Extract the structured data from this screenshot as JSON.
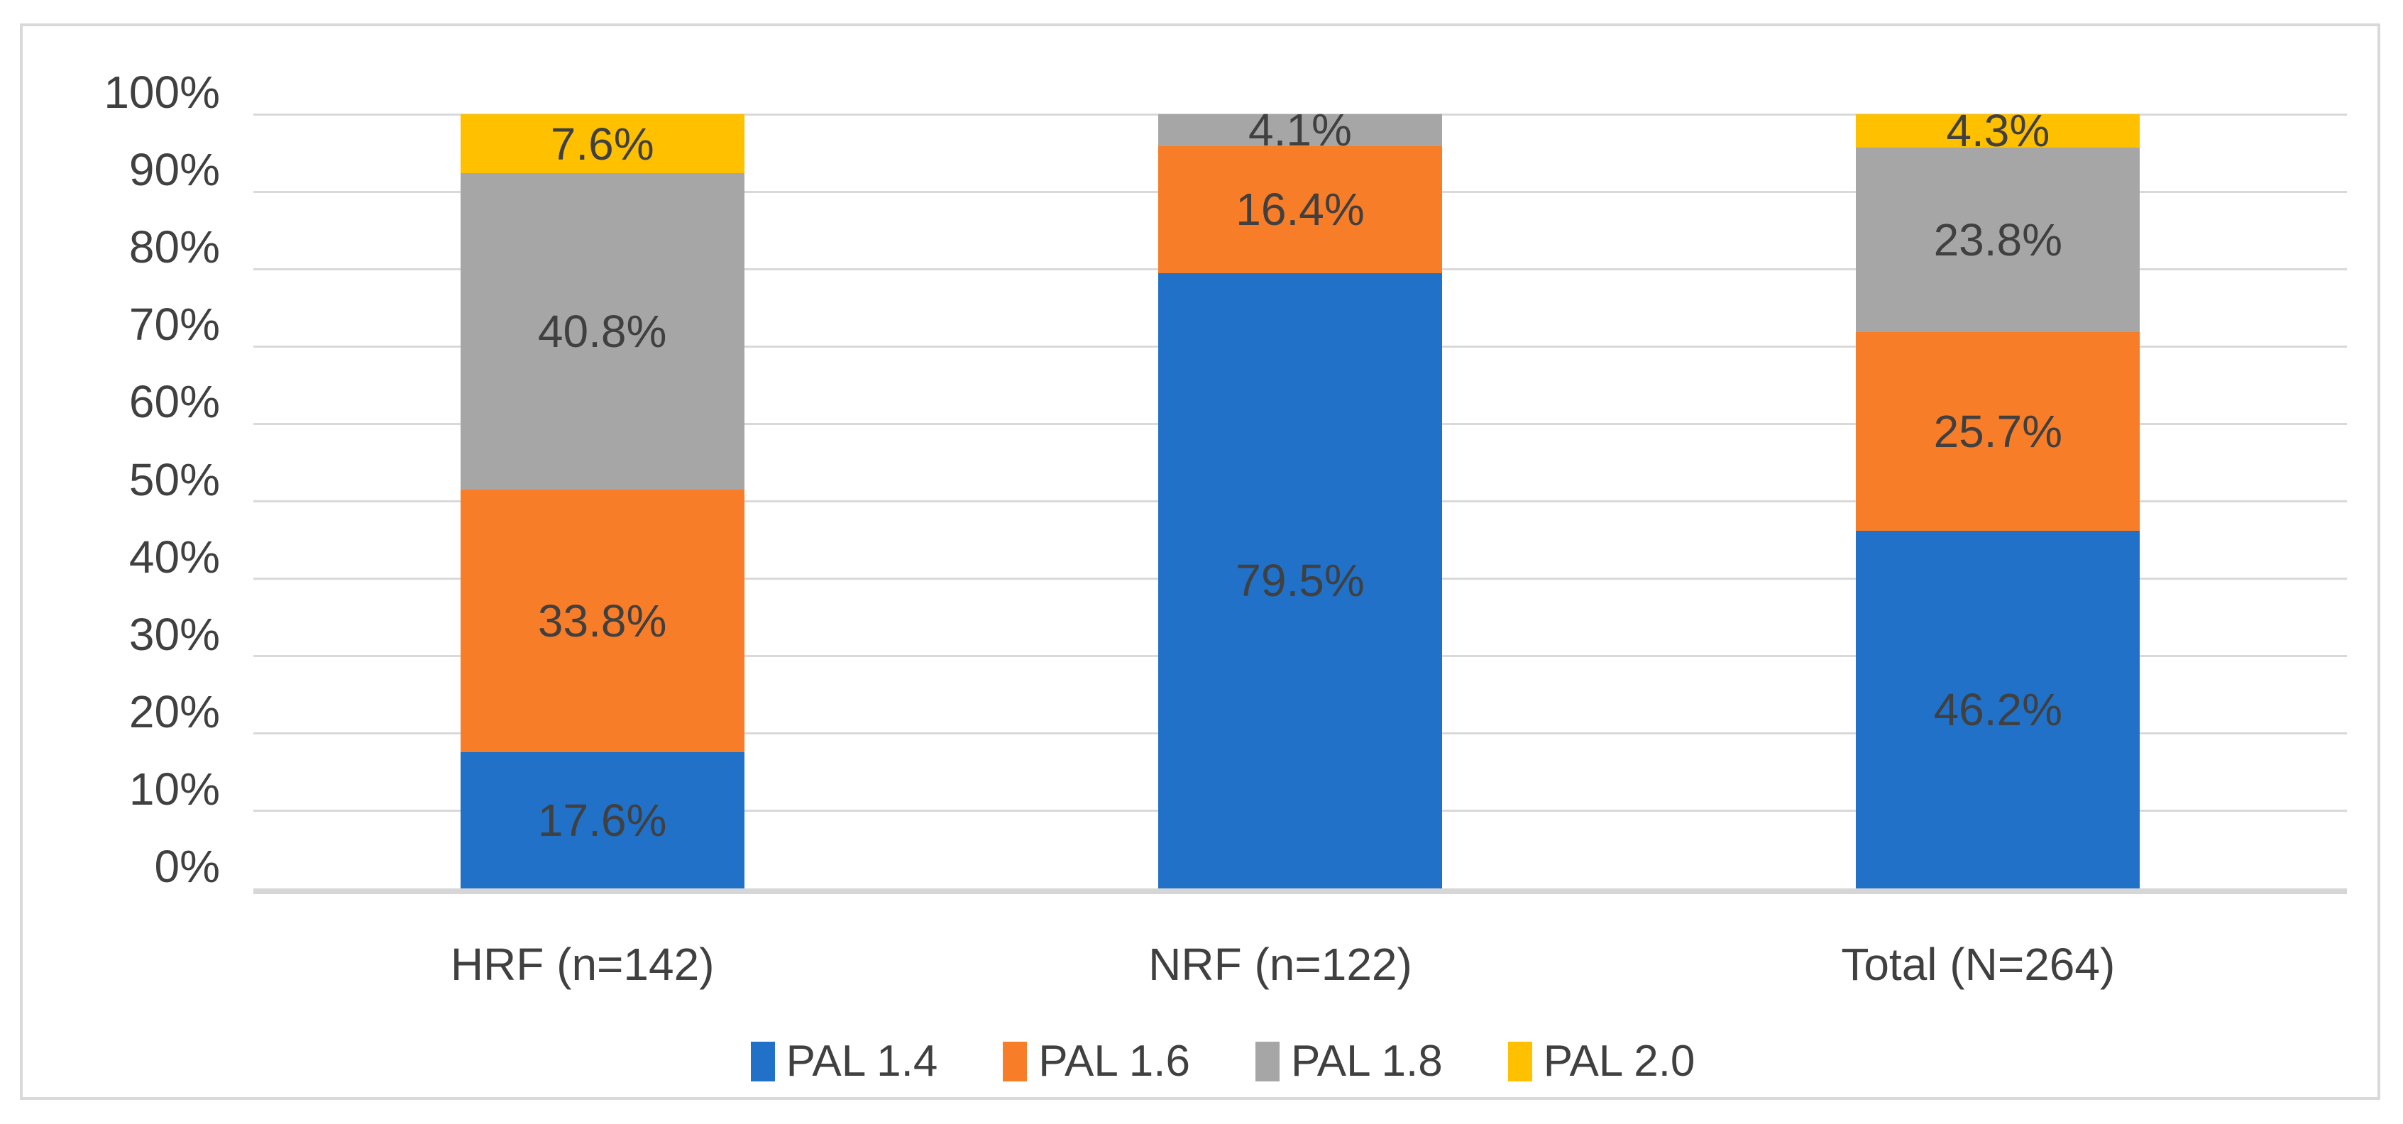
{
  "chart_data": {
    "type": "bar",
    "subtype": "100%-stacked-column",
    "title": "",
    "xlabel": "",
    "ylabel": "",
    "categories": [
      "HRF (n=142)",
      "NRF (n=122)",
      "Total (N=264)"
    ],
    "series": [
      {
        "name": "PAL 1.4",
        "color": "#2071c7",
        "values": [
          17.6,
          79.5,
          46.2
        ]
      },
      {
        "name": "PAL 1.6",
        "color": "#f87d28",
        "values": [
          33.8,
          16.4,
          25.7
        ]
      },
      {
        "name": "PAL 1.8",
        "color": "#a6a6a6",
        "values": [
          40.8,
          4.1,
          23.8
        ]
      },
      {
        "name": "PAL 2.0",
        "color": "#ffc000",
        "values": [
          7.6,
          0,
          4.3
        ]
      }
    ],
    "data_labels": [
      [
        "17.6%",
        "33.8%",
        "40.8%",
        "7.6%"
      ],
      [
        "79.5%",
        "16.4%",
        "4.1%",
        ""
      ],
      [
        "46.2%",
        "25.7%",
        "23.8%",
        "4.3%"
      ]
    ],
    "yticks": [
      "0%",
      "10%",
      "20%",
      "30%",
      "40%",
      "50%",
      "60%",
      "70%",
      "80%",
      "90%",
      "100%"
    ],
    "ylim": [
      0,
      100
    ],
    "grid": true,
    "legend_position": "bottom",
    "legend_entries": [
      "PAL 1.4",
      "PAL 1.6",
      "PAL 1.8",
      "PAL 2.0"
    ]
  },
  "style_colors": {
    "gridline": "#d9d9d9",
    "axis_line": "#d6d6d6",
    "frame_border": "#d9d9d9",
    "tick_text": "#404040",
    "label_text": "#404040",
    "background": "#ffffff"
  }
}
